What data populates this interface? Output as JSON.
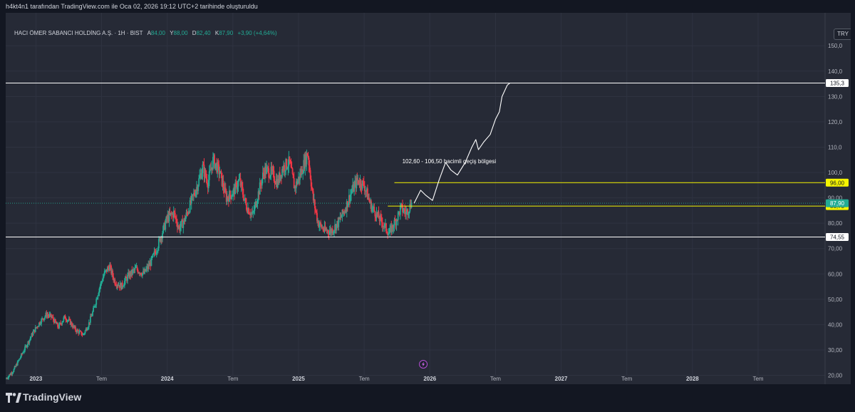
{
  "header": {
    "credit": "h4kt4n1 tarafından TradingView.com ile Oca 02, 2026 19:12 UTC+2 tarihinde oluşturuldu"
  },
  "legend": {
    "symbol": "HACI ÖMER SABANCI HOLDİNG A.Ş. · 1H · BIST",
    "open_label": "A",
    "open": "84,00",
    "high_label": "Y",
    "high": "88,00",
    "low_label": "D",
    "low": "82,40",
    "close_label": "K",
    "close": "87,90",
    "change": "+3,90 (+4,64%)"
  },
  "currency": "TRY",
  "footer": {
    "brand": "TradingView"
  },
  "colors": {
    "up": "#22ab94",
    "down": "#f23645",
    "levels": "#ffffff",
    "zone": "#f5f500",
    "last_price_bg": "#22ab94"
  },
  "chart_data": {
    "type": "candlestick",
    "title": "",
    "xlabel": "",
    "ylabel": "",
    "ylim": [
      16.5,
      163
    ],
    "grid": true,
    "y_ticks": [
      "20,00",
      "30,00",
      "40,00",
      "50,00",
      "60,00",
      "70,00",
      "80,00",
      "90,00",
      "100,0",
      "110,0",
      "120,0",
      "130,0",
      "140,0",
      "150,0"
    ],
    "x_ticks": [
      {
        "label": "2023",
        "t": 2023.0,
        "bold": true
      },
      {
        "label": "Tem",
        "t": 2023.5,
        "bold": false
      },
      {
        "label": "2024",
        "t": 2024.0,
        "bold": true
      },
      {
        "label": "Tem",
        "t": 2024.5,
        "bold": false
      },
      {
        "label": "2025",
        "t": 2025.0,
        "bold": true
      },
      {
        "label": "Tem",
        "t": 2025.5,
        "bold": false
      },
      {
        "label": "2026",
        "t": 2026.0,
        "bold": true
      },
      {
        "label": "Tem",
        "t": 2026.5,
        "bold": false
      },
      {
        "label": "2027",
        "t": 2027.0,
        "bold": true
      },
      {
        "label": "Tem",
        "t": 2027.5,
        "bold": false
      },
      {
        "label": "2028",
        "t": 2028.0,
        "bold": true
      },
      {
        "label": "Tem",
        "t": 2028.5,
        "bold": false
      }
    ],
    "x_range": [
      2022.77,
      2029.01
    ],
    "price_path": [
      [
        2022.77,
        18.5
      ],
      [
        2022.83,
        22
      ],
      [
        2022.88,
        27
      ],
      [
        2022.93,
        32
      ],
      [
        2022.98,
        37
      ],
      [
        2023.03,
        41
      ],
      [
        2023.08,
        44
      ],
      [
        2023.12,
        43
      ],
      [
        2023.17,
        39
      ],
      [
        2023.22,
        43
      ],
      [
        2023.26,
        41
      ],
      [
        2023.3,
        38
      ],
      [
        2023.36,
        36
      ],
      [
        2023.4,
        40
      ],
      [
        2023.44,
        46
      ],
      [
        2023.48,
        54
      ],
      [
        2023.52,
        60
      ],
      [
        2023.56,
        63
      ],
      [
        2023.6,
        57
      ],
      [
        2023.65,
        55
      ],
      [
        2023.7,
        59
      ],
      [
        2023.76,
        62
      ],
      [
        2023.82,
        60
      ],
      [
        2023.87,
        64
      ],
      [
        2023.92,
        70
      ],
      [
        2023.96,
        76
      ],
      [
        2024.0,
        82
      ],
      [
        2024.05,
        84
      ],
      [
        2024.09,
        78
      ],
      [
        2024.13,
        81
      ],
      [
        2024.18,
        88
      ],
      [
        2024.23,
        95
      ],
      [
        2024.27,
        102
      ],
      [
        2024.31,
        96
      ],
      [
        2024.35,
        105
      ],
      [
        2024.4,
        100
      ],
      [
        2024.45,
        90
      ],
      [
        2024.5,
        92
      ],
      [
        2024.55,
        97
      ],
      [
        2024.6,
        87
      ],
      [
        2024.65,
        83
      ],
      [
        2024.7,
        93
      ],
      [
        2024.74,
        101
      ],
      [
        2024.79,
        100
      ],
      [
        2024.84,
        96
      ],
      [
        2024.88,
        102
      ],
      [
        2024.93,
        104
      ],
      [
        2024.97,
        94
      ],
      [
        2025.02,
        100
      ],
      [
        2025.07,
        108
      ],
      [
        2025.11,
        90
      ],
      [
        2025.15,
        80
      ],
      [
        2025.2,
        77
      ],
      [
        2025.25,
        77
      ],
      [
        2025.3,
        80
      ],
      [
        2025.35,
        85
      ],
      [
        2025.4,
        92
      ],
      [
        2025.45,
        97
      ],
      [
        2025.5,
        95
      ],
      [
        2025.55,
        87
      ],
      [
        2025.6,
        83
      ],
      [
        2025.64,
        80
      ],
      [
        2025.69,
        76
      ],
      [
        2025.74,
        81
      ],
      [
        2025.78,
        86
      ],
      [
        2025.82,
        84
      ],
      [
        2025.86,
        87.9
      ]
    ],
    "levels": [
      {
        "price": 135.3,
        "label": "135,3",
        "color": "#ffffff",
        "kind": "line"
      },
      {
        "price": 74.55,
        "label": "74,55",
        "color": "#ffffff",
        "kind": "line"
      },
      {
        "price": 96.0,
        "label": "96,00",
        "color": "#f5f500",
        "kind": "zone",
        "t_start": 2025.73
      },
      {
        "price": 86.75,
        "label": "86,75",
        "color": "#f5f500",
        "kind": "zone",
        "t_start": 2025.68
      }
    ],
    "last_price": {
      "price": 87.9,
      "label": "87,90"
    },
    "annotation": {
      "text": "102,60 - 106,50 hacimli geçiş bölgesi",
      "t": 2025.79,
      "price": 103.7
    },
    "projection": [
      [
        2025.88,
        87.9
      ],
      [
        2025.93,
        93
      ],
      [
        2025.97,
        91
      ],
      [
        2026.02,
        89
      ],
      [
        2026.07,
        97
      ],
      [
        2026.12,
        104
      ],
      [
        2026.16,
        101
      ],
      [
        2026.21,
        99
      ],
      [
        2026.27,
        104
      ],
      [
        2026.32,
        110
      ],
      [
        2026.35,
        113
      ],
      [
        2026.37,
        109
      ],
      [
        2026.41,
        112
      ],
      [
        2026.46,
        115
      ],
      [
        2026.5,
        121
      ],
      [
        2026.53,
        124
      ],
      [
        2026.55,
        130
      ],
      [
        2026.59,
        134.5
      ],
      [
        2026.61,
        135.3
      ]
    ]
  }
}
